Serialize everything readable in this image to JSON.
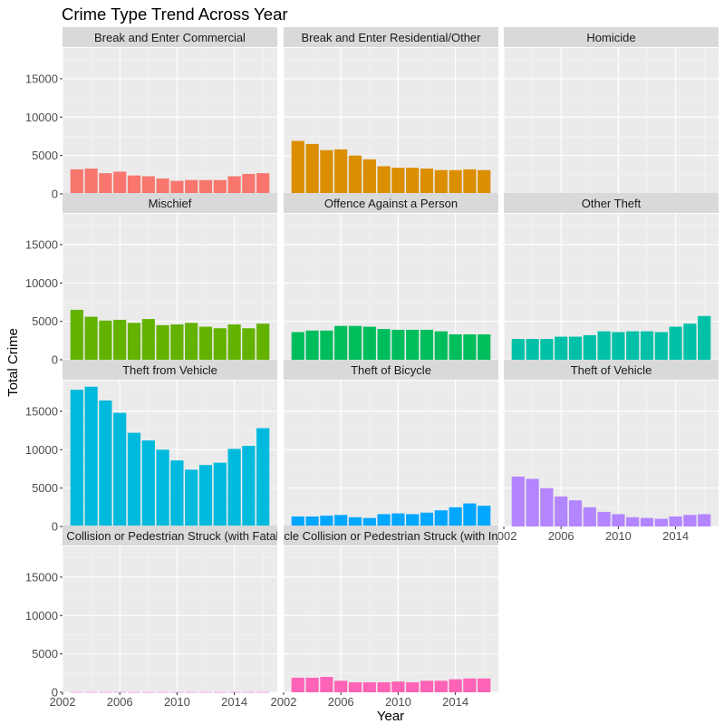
{
  "chart_data": {
    "type": "bar",
    "title": "Crime Type Trend Across Year",
    "xlabel": "Year",
    "ylabel": "Total Crime",
    "x": [
      2003,
      2004,
      2005,
      2006,
      2007,
      2008,
      2009,
      2010,
      2011,
      2012,
      2013,
      2014,
      2015,
      2016
    ],
    "xticks": [
      2002,
      2006,
      2010,
      2014
    ],
    "yticks": [
      0,
      5000,
      10000,
      15000
    ],
    "ylim": [
      0,
      19000
    ],
    "xlim": [
      2002,
      2017
    ],
    "grid": true,
    "legend": "none",
    "facets": [
      {
        "name": "Break and Enter Commercial",
        "color": "#F8766D",
        "values": [
          3200,
          3300,
          2700,
          2900,
          2400,
          2300,
          2000,
          1700,
          1800,
          1800,
          1800,
          2300,
          2600,
          2700
        ]
      },
      {
        "name": "Break and Enter Residential/Other",
        "color": "#DB8E00",
        "values": [
          6900,
          6500,
          5700,
          5800,
          5000,
          4500,
          3600,
          3400,
          3400,
          3300,
          3100,
          3100,
          3200,
          3100
        ]
      },
      {
        "name": "Homicide",
        "color": "#AEA200",
        "values": [
          20,
          25,
          30,
          25,
          20,
          25,
          20,
          15,
          20,
          15,
          10,
          15,
          20,
          10
        ]
      },
      {
        "name": "Mischief",
        "color": "#64B200",
        "values": [
          6500,
          5600,
          5100,
          5200,
          4800,
          5300,
          4500,
          4600,
          4800,
          4300,
          4100,
          4600,
          4100,
          4700
        ]
      },
      {
        "name": "Offence Against a Person",
        "color": "#00BD5C",
        "values": [
          3600,
          3800,
          3800,
          4400,
          4400,
          4300,
          4000,
          3900,
          3900,
          3900,
          3700,
          3300,
          3300,
          3300
        ]
      },
      {
        "name": "Other Theft",
        "color": "#00C1A7",
        "values": [
          2700,
          2700,
          2700,
          3000,
          3000,
          3200,
          3700,
          3600,
          3700,
          3700,
          3600,
          4300,
          4700,
          5700
        ]
      },
      {
        "name": "Theft from Vehicle",
        "color": "#00BADE",
        "values": [
          17800,
          18200,
          16400,
          14800,
          12200,
          11200,
          10000,
          8600,
          7400,
          8000,
          8300,
          10100,
          10500,
          12800
        ]
      },
      {
        "name": "Theft of Bicycle",
        "color": "#00A6FF",
        "values": [
          1300,
          1300,
          1400,
          1500,
          1200,
          1100,
          1600,
          1700,
          1600,
          1800,
          2100,
          2500,
          3000,
          2700
        ]
      },
      {
        "name": "Theft of Vehicle",
        "color": "#B385FF",
        "values": [
          6500,
          6200,
          5000,
          3900,
          3400,
          2500,
          1900,
          1600,
          1200,
          1100,
          1000,
          1300,
          1500,
          1600
        ]
      },
      {
        "name": "Vehicle Collision or Pedestrian Struck (with Fatal Injury)",
        "color": "#EF67EB",
        "values": [
          30,
          30,
          25,
          30,
          25,
          25,
          30,
          25,
          25,
          30,
          25,
          30,
          25,
          30
        ]
      },
      {
        "name": "Vehicle Collision or Pedestrian Struck (with Injury)",
        "color": "#FF63B6",
        "values": [
          1900,
          1900,
          2000,
          1500,
          1300,
          1300,
          1300,
          1400,
          1300,
          1500,
          1500,
          1700,
          1800,
          1800
        ]
      }
    ]
  }
}
